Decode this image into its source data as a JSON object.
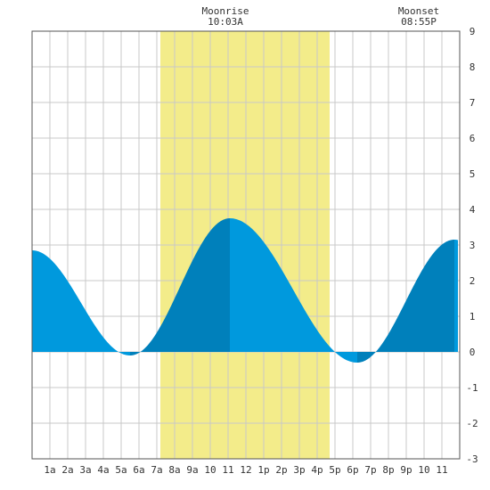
{
  "chart_data": {
    "type": "area",
    "title": "",
    "xlabel": "",
    "ylabel": "",
    "ylim": [
      -3,
      9
    ],
    "xlim": [
      0,
      24
    ],
    "y_ticks": [
      "-3",
      "-2",
      "-1",
      "0",
      "1",
      "2",
      "3",
      "4",
      "5",
      "6",
      "7",
      "8",
      "9"
    ],
    "x_ticks": [
      {
        "h": 1,
        "label": "1a"
      },
      {
        "h": 2,
        "label": "2a"
      },
      {
        "h": 3,
        "label": "3a"
      },
      {
        "h": 4,
        "label": "4a"
      },
      {
        "h": 5,
        "label": "5a"
      },
      {
        "h": 6,
        "label": "6a"
      },
      {
        "h": 7,
        "label": "7a"
      },
      {
        "h": 8,
        "label": "8a"
      },
      {
        "h": 9,
        "label": "9a"
      },
      {
        "h": 10,
        "label": "10"
      },
      {
        "h": 11,
        "label": "11"
      },
      {
        "h": 12,
        "label": "12"
      },
      {
        "h": 13,
        "label": "1p"
      },
      {
        "h": 14,
        "label": "2p"
      },
      {
        "h": 15,
        "label": "3p"
      },
      {
        "h": 16,
        "label": "4p"
      },
      {
        "h": 17,
        "label": "5p"
      },
      {
        "h": 18,
        "label": "6p"
      },
      {
        "h": 19,
        "label": "7p"
      },
      {
        "h": 20,
        "label": "8p"
      },
      {
        "h": 21,
        "label": "9p"
      },
      {
        "h": 22,
        "label": "10"
      },
      {
        "h": 23,
        "label": "11"
      }
    ],
    "tide_extremes": [
      {
        "time": "12:00A",
        "h": 0.0,
        "height": 2.85
      },
      {
        "time": "5:30A",
        "h": 5.5,
        "height": -0.1
      },
      {
        "time": "11:05A",
        "h": 11.1,
        "height": 3.75
      },
      {
        "time": "6:15P",
        "h": 18.25,
        "height": -0.3
      },
      {
        "time": "11:40P",
        "h": 23.7,
        "height": 3.15
      }
    ],
    "sunlight_window": {
      "start_h": 7.2,
      "end_h": 16.7
    },
    "moonrise": {
      "label": "Moonrise",
      "time": "10:03A",
      "h": 10.05
    },
    "moonset": {
      "label": "Moonset",
      "time": "08:55P",
      "h": 20.9
    },
    "colors": {
      "water": "#0099dd",
      "water_dark": "#0080bb",
      "moon_band": "#f3ec8a",
      "grid": "#c8c8c8",
      "frame": "#555555"
    }
  }
}
